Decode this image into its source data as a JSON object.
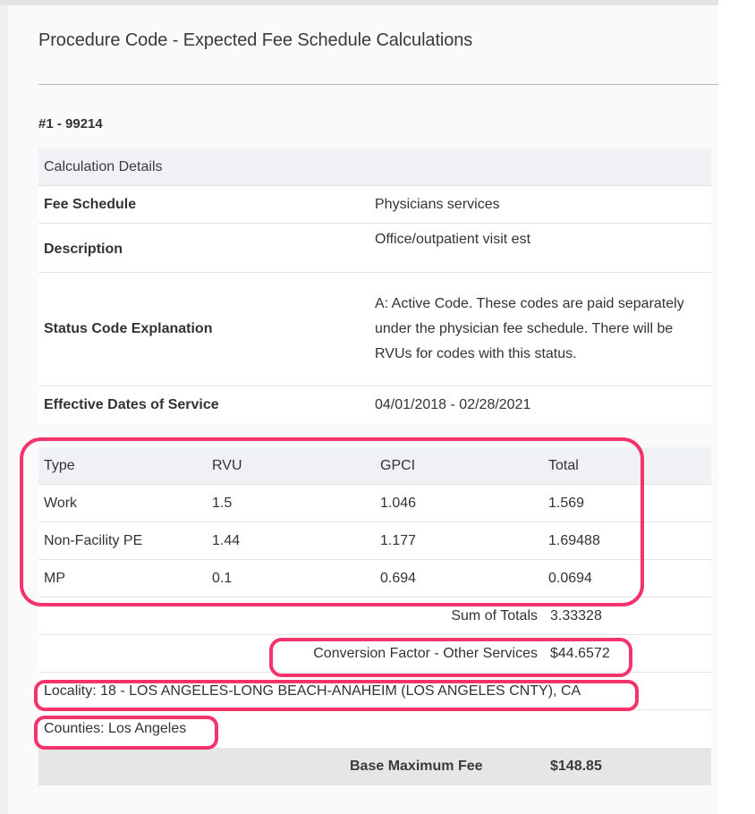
{
  "page": {
    "title": "Procedure Code - Expected Fee Schedule Calculations",
    "code_label": "#1 - 99214"
  },
  "details": {
    "header": "Calculation Details",
    "rows": [
      {
        "label": "Fee Schedule",
        "value": "Physicians services"
      },
      {
        "label": "Description",
        "value": "Office/outpatient visit est"
      },
      {
        "label": "Status Code Explanation",
        "value": "A: Active Code. These codes are paid separately under the physician fee schedule. There will be RVUs for codes with this status."
      },
      {
        "label": "Effective Dates of Service",
        "value": "04/01/2018 - 02/28/2021"
      }
    ]
  },
  "rvu_table": {
    "columns": [
      "Type",
      "RVU",
      "GPCI",
      "Total"
    ],
    "rows": [
      [
        "Work",
        "1.5",
        "1.046",
        "1.569"
      ],
      [
        "Non-Facility PE",
        "1.44",
        "1.177",
        "1.69488"
      ],
      [
        "MP",
        "0.1",
        "0.694",
        "0.0694"
      ]
    ]
  },
  "summary": {
    "sum_of_totals_label": "Sum of Totals",
    "sum_of_totals_value": "3.33328",
    "conversion_factor_label": "Conversion Factor - Other Services",
    "conversion_factor_value": "$44.6572",
    "locality": "Locality: 18 - LOS ANGELES-LONG BEACH-ANAHEIM (LOS ANGELES CNTY), CA",
    "counties": "Counties: Los Angeles",
    "base_max_fee_label": "Base Maximum Fee",
    "base_max_fee_value": "$148.85"
  },
  "colors": {
    "highlight": "#f5336b",
    "header_bg": "#f0f1f5",
    "total_bg": "#e6e6e6"
  }
}
